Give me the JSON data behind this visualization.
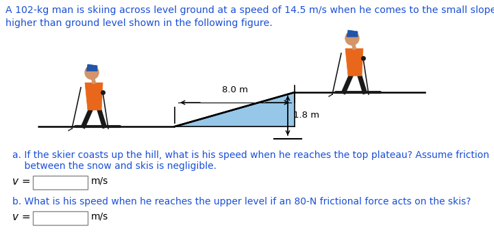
{
  "title_text_parts": [
    {
      "text": "A 102-kg man is skiing across level ground at a speed of 14.5 m/s when he comes to the small slope 1.8 m\nhigher than ground level shown in the following figure.",
      "color": "#1a4fd6"
    }
  ],
  "bg_color": "#ffffff",
  "slope_fill_color": "#6ab0e0",
  "ground_line_color": "#000000",
  "slope_label": "8.0 m",
  "height_label": "1.8 m",
  "part_a_line1": "a. If the skier coasts up the hill, what is his speed when he reaches the top plateau? Assume friction",
  "part_a_line2": "    between the snow and skis is negligible.",
  "part_a_color": "#1a4fd6",
  "part_b_text": "b. What is his speed when he reaches the upper level if an 80-N frictional force acts on the skis?",
  "part_b_color": "#1a4fd6",
  "v_label": "v =",
  "unit_label": "m/s",
  "body_text_color": "#000000",
  "figure_width": 7.21,
  "figure_height": 3.51,
  "skier_orange": "#E8671A",
  "skier_black": "#1a1a1a",
  "skier_helmet": "#2255aa",
  "skier_skin": "#d4956a",
  "skier_glove": "#333333"
}
